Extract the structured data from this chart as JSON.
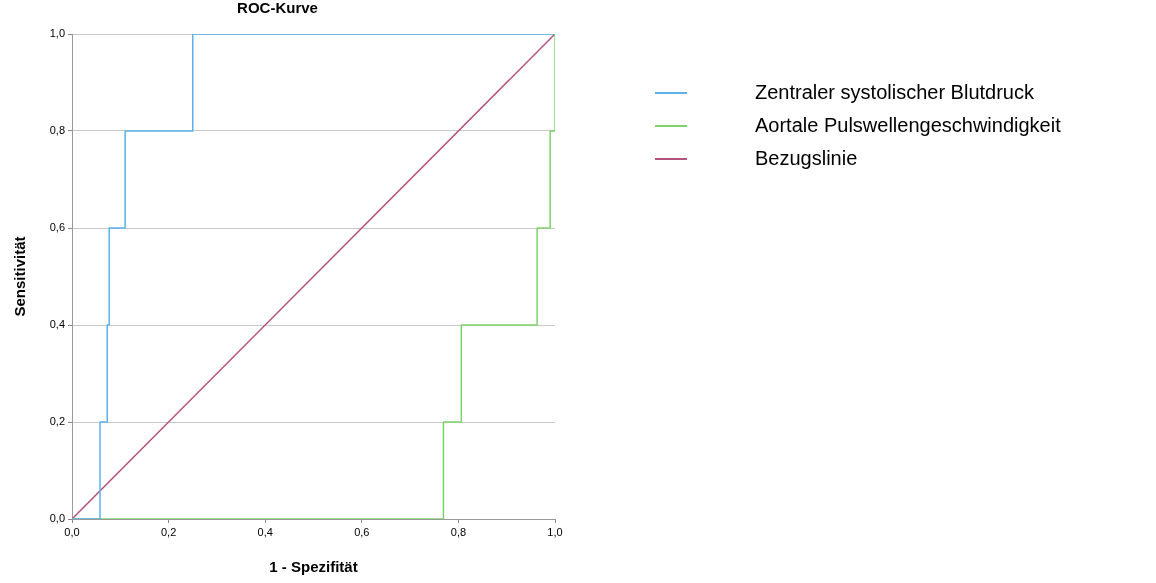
{
  "chart_data": {
    "type": "step",
    "title": "ROC-Kurve",
    "xlabel": "1 - Spezifität",
    "ylabel": "Sensitivität",
    "xlim": [
      0,
      1
    ],
    "ylim": [
      0,
      1
    ],
    "xticks": [
      {
        "value": 0,
        "label": "0,0"
      },
      {
        "value": 0.2,
        "label": "0,2"
      },
      {
        "value": 0.4,
        "label": "0,4"
      },
      {
        "value": 0.6,
        "label": "0,6"
      },
      {
        "value": 0.8,
        "label": "0,8"
      },
      {
        "value": 1,
        "label": "1,0"
      }
    ],
    "yticks": [
      {
        "value": 0,
        "label": "0,0"
      },
      {
        "value": 0.2,
        "label": "0,2"
      },
      {
        "value": 0.4,
        "label": "0,4"
      },
      {
        "value": 0.6,
        "label": "0,6"
      },
      {
        "value": 0.8,
        "label": "0,8"
      },
      {
        "value": 1,
        "label": "1,0"
      }
    ],
    "grid": "y",
    "legend": "top right",
    "marker": "none",
    "series": [
      {
        "name": "Zentraler systolischer Blutdruck",
        "color": "#5cb3ea",
        "x": [
          0,
          0.058,
          0.073,
          0.077,
          0.11,
          0.25,
          1
        ],
        "values": [
          0,
          0.2,
          0.4,
          0.6,
          0.8,
          1,
          1
        ]
      },
      {
        "name": "Aortale Pulswellengeschwindigkeit",
        "color": "#7dd36b",
        "x": [
          0,
          0.769,
          0.806,
          0.963,
          0.99,
          1
        ],
        "values": [
          0,
          0.2,
          0.4,
          0.6,
          0.8,
          1
        ]
      },
      {
        "name": "Bezugslinie",
        "type": "line",
        "color": "#b5537a",
        "x": [
          0,
          1
        ],
        "values": [
          0,
          1
        ]
      }
    ]
  }
}
